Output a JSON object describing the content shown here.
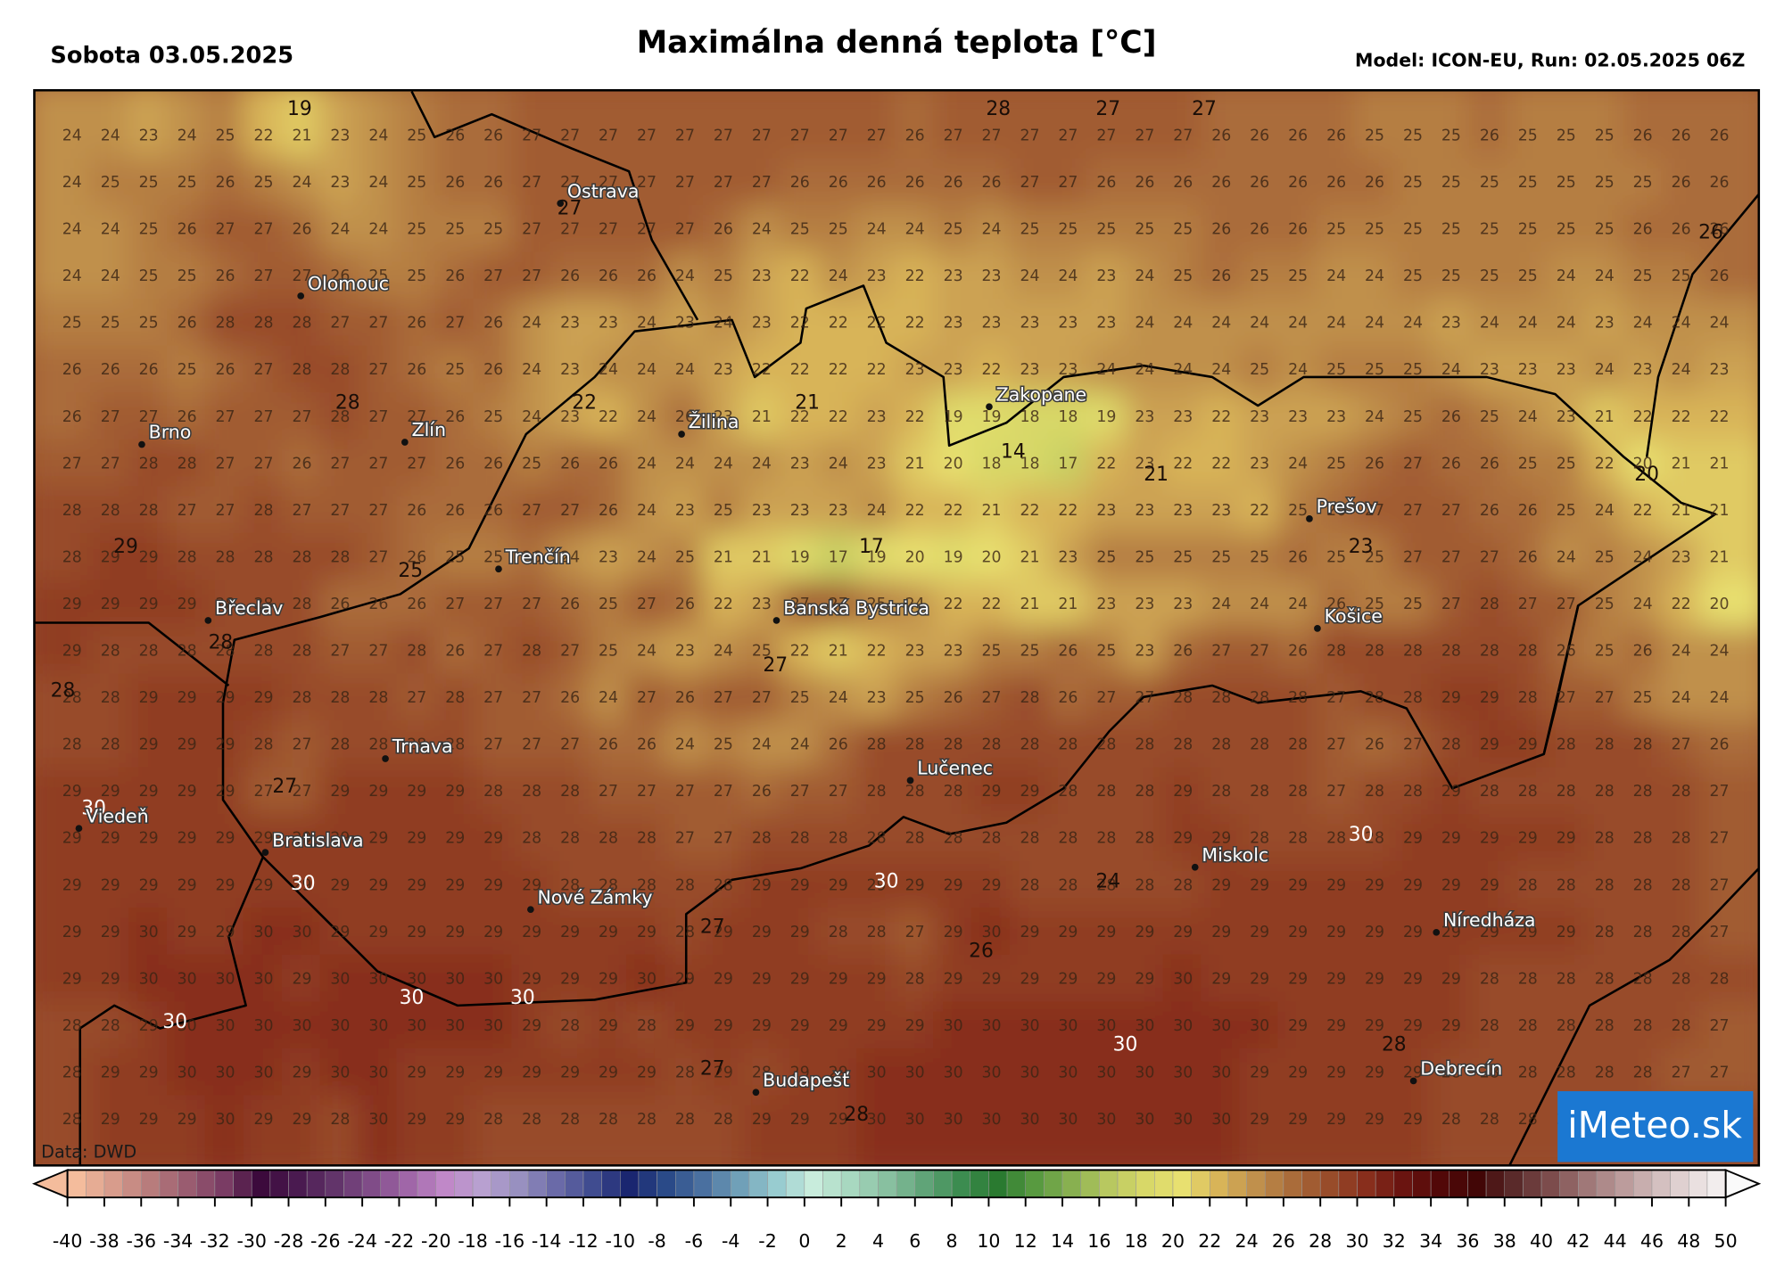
{
  "header": {
    "date": "Sobota 03.05.2025",
    "title": "Maximálna denná teplota [°C]",
    "model": "Model: ICON-EU, Run: 02.05.2025 06Z"
  },
  "map": {
    "grid": [
      [
        24,
        24,
        23,
        24,
        25,
        22,
        21,
        23,
        24,
        25,
        26,
        26,
        27,
        27,
        27,
        27,
        27,
        27,
        27,
        27,
        27,
        27,
        26,
        27,
        27,
        27,
        27,
        27,
        27,
        27,
        26,
        26,
        26,
        26,
        25,
        25,
        25,
        26,
        25,
        25,
        25,
        26,
        26,
        26
      ],
      [
        24,
        25,
        25,
        25,
        26,
        25,
        24,
        23,
        24,
        25,
        26,
        26,
        27,
        27,
        27,
        27,
        27,
        27,
        27,
        26,
        26,
        26,
        26,
        26,
        26,
        27,
        27,
        26,
        26,
        26,
        26,
        26,
        26,
        26,
        26,
        25,
        25,
        25,
        25,
        25,
        25,
        25,
        26,
        26
      ],
      [
        24,
        24,
        25,
        26,
        27,
        27,
        26,
        24,
        24,
        25,
        25,
        25,
        27,
        27,
        27,
        27,
        27,
        26,
        24,
        25,
        25,
        24,
        24,
        25,
        24,
        25,
        25,
        25,
        25,
        25,
        26,
        26,
        26,
        25,
        25,
        25,
        25,
        25,
        25,
        25,
        25,
        26,
        26,
        26
      ],
      [
        24,
        24,
        25,
        25,
        26,
        27,
        27,
        26,
        25,
        25,
        26,
        27,
        27,
        26,
        26,
        26,
        24,
        25,
        23,
        22,
        24,
        23,
        22,
        23,
        23,
        24,
        24,
        23,
        24,
        25,
        26,
        25,
        25,
        24,
        24,
        25,
        25,
        25,
        25,
        24,
        24,
        25,
        25,
        26
      ],
      [
        25,
        25,
        25,
        26,
        28,
        28,
        28,
        27,
        27,
        26,
        27,
        26,
        24,
        23,
        23,
        24,
        23,
        24,
        23,
        22,
        22,
        22,
        22,
        23,
        23,
        23,
        23,
        23,
        24,
        24,
        24,
        24,
        24,
        24,
        24,
        24,
        23,
        24,
        24,
        24,
        23,
        24,
        24,
        24
      ],
      [
        26,
        26,
        26,
        25,
        26,
        27,
        28,
        28,
        27,
        26,
        25,
        26,
        24,
        23,
        24,
        24,
        24,
        23,
        22,
        22,
        22,
        22,
        23,
        23,
        22,
        23,
        23,
        24,
        24,
        24,
        24,
        25,
        24,
        25,
        25,
        25,
        24,
        23,
        23,
        23,
        24,
        23,
        24,
        23
      ],
      [
        26,
        27,
        27,
        26,
        27,
        27,
        27,
        28,
        27,
        27,
        26,
        25,
        24,
        23,
        22,
        24,
        26,
        23,
        21,
        22,
        22,
        23,
        22,
        19,
        19,
        18,
        18,
        19,
        23,
        23,
        22,
        23,
        23,
        23,
        24,
        25,
        26,
        25,
        24,
        23,
        21,
        22,
        22,
        22
      ],
      [
        27,
        27,
        28,
        28,
        27,
        27,
        26,
        27,
        27,
        27,
        26,
        26,
        25,
        26,
        26,
        24,
        24,
        24,
        24,
        23,
        24,
        23,
        21,
        20,
        18,
        18,
        17,
        22,
        23,
        22,
        22,
        23,
        24,
        25,
        26,
        27,
        26,
        26,
        25,
        25,
        22,
        20,
        21,
        21
      ],
      [
        28,
        28,
        28,
        27,
        27,
        28,
        27,
        27,
        27,
        26,
        26,
        26,
        27,
        27,
        26,
        24,
        23,
        25,
        23,
        23,
        23,
        24,
        22,
        22,
        21,
        22,
        22,
        23,
        23,
        23,
        23,
        22,
        25,
        26,
        27,
        27,
        27,
        26,
        26,
        25,
        24,
        22,
        21,
        21
      ],
      [
        28,
        29,
        29,
        28,
        28,
        28,
        28,
        28,
        27,
        26,
        25,
        25,
        26,
        24,
        23,
        24,
        25,
        21,
        21,
        19,
        17,
        19,
        20,
        19,
        20,
        21,
        23,
        25,
        25,
        25,
        25,
        25,
        26,
        25,
        25,
        27,
        27,
        27,
        26,
        24,
        25,
        24,
        23,
        21
      ],
      [
        29,
        29,
        29,
        29,
        28,
        28,
        28,
        26,
        26,
        26,
        27,
        27,
        27,
        26,
        25,
        27,
        26,
        22,
        23,
        27,
        27,
        25,
        24,
        22,
        22,
        21,
        21,
        23,
        23,
        23,
        24,
        24,
        24,
        26,
        25,
        25,
        27,
        28,
        27,
        27,
        25,
        24,
        22,
        20
      ],
      [
        29,
        28,
        28,
        28,
        28,
        28,
        28,
        27,
        27,
        28,
        26,
        27,
        28,
        27,
        25,
        24,
        23,
        24,
        25,
        22,
        21,
        22,
        23,
        23,
        25,
        25,
        26,
        25,
        23,
        26,
        27,
        27,
        26,
        28,
        28,
        28,
        28,
        28,
        28,
        26,
        25,
        26,
        24,
        24
      ],
      [
        28,
        28,
        29,
        29,
        29,
        29,
        28,
        28,
        28,
        27,
        28,
        27,
        27,
        26,
        24,
        27,
        26,
        27,
        27,
        25,
        24,
        23,
        25,
        26,
        27,
        28,
        26,
        27,
        27,
        28,
        28,
        28,
        28,
        27,
        28,
        28,
        29,
        29,
        28,
        27,
        27,
        25,
        24,
        24
      ],
      [
        28,
        28,
        29,
        29,
        29,
        28,
        27,
        28,
        28,
        28,
        28,
        27,
        27,
        27,
        26,
        26,
        24,
        25,
        24,
        24,
        26,
        28,
        28,
        28,
        28,
        28,
        28,
        28,
        28,
        28,
        28,
        28,
        28,
        27,
        26,
        27,
        28,
        29,
        29,
        28,
        28,
        28,
        27,
        26
      ],
      [
        29,
        29,
        29,
        29,
        29,
        27,
        27,
        29,
        29,
        29,
        29,
        28,
        28,
        28,
        27,
        27,
        27,
        27,
        26,
        27,
        27,
        28,
        28,
        28,
        29,
        29,
        28,
        28,
        28,
        29,
        28,
        28,
        28,
        27,
        28,
        28,
        29,
        28,
        28,
        28,
        28,
        28,
        28,
        27
      ],
      [
        29,
        29,
        29,
        29,
        29,
        29,
        29,
        29,
        29,
        29,
        29,
        29,
        28,
        28,
        28,
        28,
        27,
        27,
        28,
        28,
        28,
        28,
        28,
        28,
        28,
        28,
        28,
        28,
        28,
        29,
        29,
        28,
        28,
        28,
        28,
        29,
        29,
        29,
        29,
        29,
        28,
        28,
        28,
        27
      ],
      [
        29,
        29,
        29,
        29,
        29,
        29,
        29,
        29,
        29,
        29,
        29,
        29,
        29,
        28,
        28,
        28,
        28,
        28,
        29,
        29,
        29,
        29,
        29,
        29,
        29,
        28,
        28,
        28,
        28,
        28,
        29,
        29,
        29,
        29,
        29,
        29,
        29,
        29,
        28,
        28,
        28,
        28,
        28,
        27
      ],
      [
        29,
        29,
        30,
        29,
        29,
        30,
        30,
        29,
        29,
        29,
        29,
        29,
        29,
        29,
        29,
        29,
        28,
        29,
        29,
        29,
        28,
        28,
        27,
        29,
        30,
        29,
        29,
        29,
        29,
        29,
        29,
        29,
        29,
        29,
        29,
        29,
        29,
        29,
        29,
        29,
        28,
        28,
        28,
        27
      ],
      [
        29,
        29,
        30,
        30,
        30,
        30,
        29,
        30,
        30,
        30,
        30,
        30,
        29,
        29,
        29,
        30,
        29,
        29,
        29,
        29,
        29,
        29,
        28,
        29,
        29,
        29,
        29,
        29,
        29,
        30,
        29,
        29,
        29,
        29,
        29,
        29,
        29,
        28,
        28,
        28,
        28,
        28,
        28,
        28
      ],
      [
        28,
        28,
        29,
        30,
        30,
        30,
        30,
        30,
        30,
        30,
        30,
        30,
        29,
        28,
        29,
        28,
        29,
        29,
        29,
        29,
        29,
        29,
        29,
        30,
        30,
        30,
        30,
        30,
        30,
        30,
        30,
        30,
        29,
        29,
        29,
        29,
        29,
        28,
        28,
        28,
        28,
        28,
        28,
        27
      ],
      [
        28,
        29,
        29,
        30,
        30,
        30,
        29,
        30,
        30,
        29,
        29,
        29,
        29,
        29,
        29,
        29,
        28,
        29,
        28,
        29,
        29,
        30,
        30,
        30,
        30,
        30,
        30,
        30,
        30,
        30,
        30,
        29,
        29,
        29,
        29,
        29,
        28,
        28,
        28,
        28,
        28,
        28,
        27,
        27
      ],
      [
        28,
        29,
        29,
        29,
        30,
        29,
        29,
        28,
        30,
        29,
        29,
        28,
        28,
        28,
        28,
        28,
        28,
        28,
        29,
        29,
        29,
        30,
        30,
        30,
        30,
        30,
        30,
        30,
        30,
        30,
        30,
        29,
        29,
        29,
        29,
        29,
        28,
        28,
        28,
        28,
        28,
        28,
        28,
        28
      ]
    ],
    "extrema": [
      19,
      28,
      27,
      27,
      27,
      26,
      28,
      22,
      21,
      14,
      21,
      20,
      29,
      25,
      17,
      23,
      28,
      27,
      28,
      27,
      30,
      30,
      30,
      30,
      24,
      27,
      26,
      30,
      30,
      30,
      30,
      28,
      27,
      28
    ],
    "cities": [
      "Ostrava",
      "Olomouc",
      "Brno",
      "Zlín",
      "Žilina",
      "Zakopane",
      "Prešov",
      "Trenčín",
      "Břeclav",
      "Banská Bystrica",
      "Košice",
      "Trnava",
      "Lučenec",
      "Viedeň",
      "Bratislava",
      "Miskolc",
      "Nové Zámky",
      "Níredháza",
      "Budapešť",
      "Debrecín"
    ],
    "source": "Data: DWD",
    "logo": "iMeteo.sk"
  },
  "colorbar": {
    "ticks": [
      -40,
      -38,
      -36,
      -34,
      -32,
      -30,
      -28,
      -26,
      -24,
      -22,
      -20,
      -18,
      -16,
      -14,
      -12,
      -10,
      -8,
      -6,
      -4,
      -2,
      0,
      2,
      4,
      6,
      8,
      10,
      12,
      14,
      16,
      18,
      20,
      22,
      24,
      26,
      28,
      30,
      32,
      34,
      36,
      38,
      40,
      42,
      44,
      46,
      48,
      50
    ],
    "colors": [
      "#f4bc9c",
      "#d89c8c",
      "#b87c7c",
      "#9a5c70",
      "#7a3c64",
      "#3c0a3c",
      "#4a1a50",
      "#62346a",
      "#804c88",
      "#a066a8",
      "#c088c8",
      "#b8a0d0",
      "#9890c0",
      "#6a6aa8",
      "#404c90",
      "#1a2670",
      "#2a4a88",
      "#4a70a0",
      "#70a0b8",
      "#98ccd0",
      "#c8ecdc",
      "#a8d8c0",
      "#88c0a0",
      "#60a478",
      "#3c8c50",
      "#2a7a30",
      "#589a40",
      "#88b050",
      "#b8c860",
      "#d8d868",
      "#e8e070",
      "#d8b458",
      "#c0904c",
      "#aa6c3a",
      "#984c2a",
      "#882e1c",
      "#6a1410",
      "#520808",
      "#420606",
      "#5a2a2a",
      "#7c4c4c",
      "#a07878",
      "#bc9c9c",
      "#d4c0c0",
      "#eae0e0",
      "#fafafa"
    ]
  }
}
